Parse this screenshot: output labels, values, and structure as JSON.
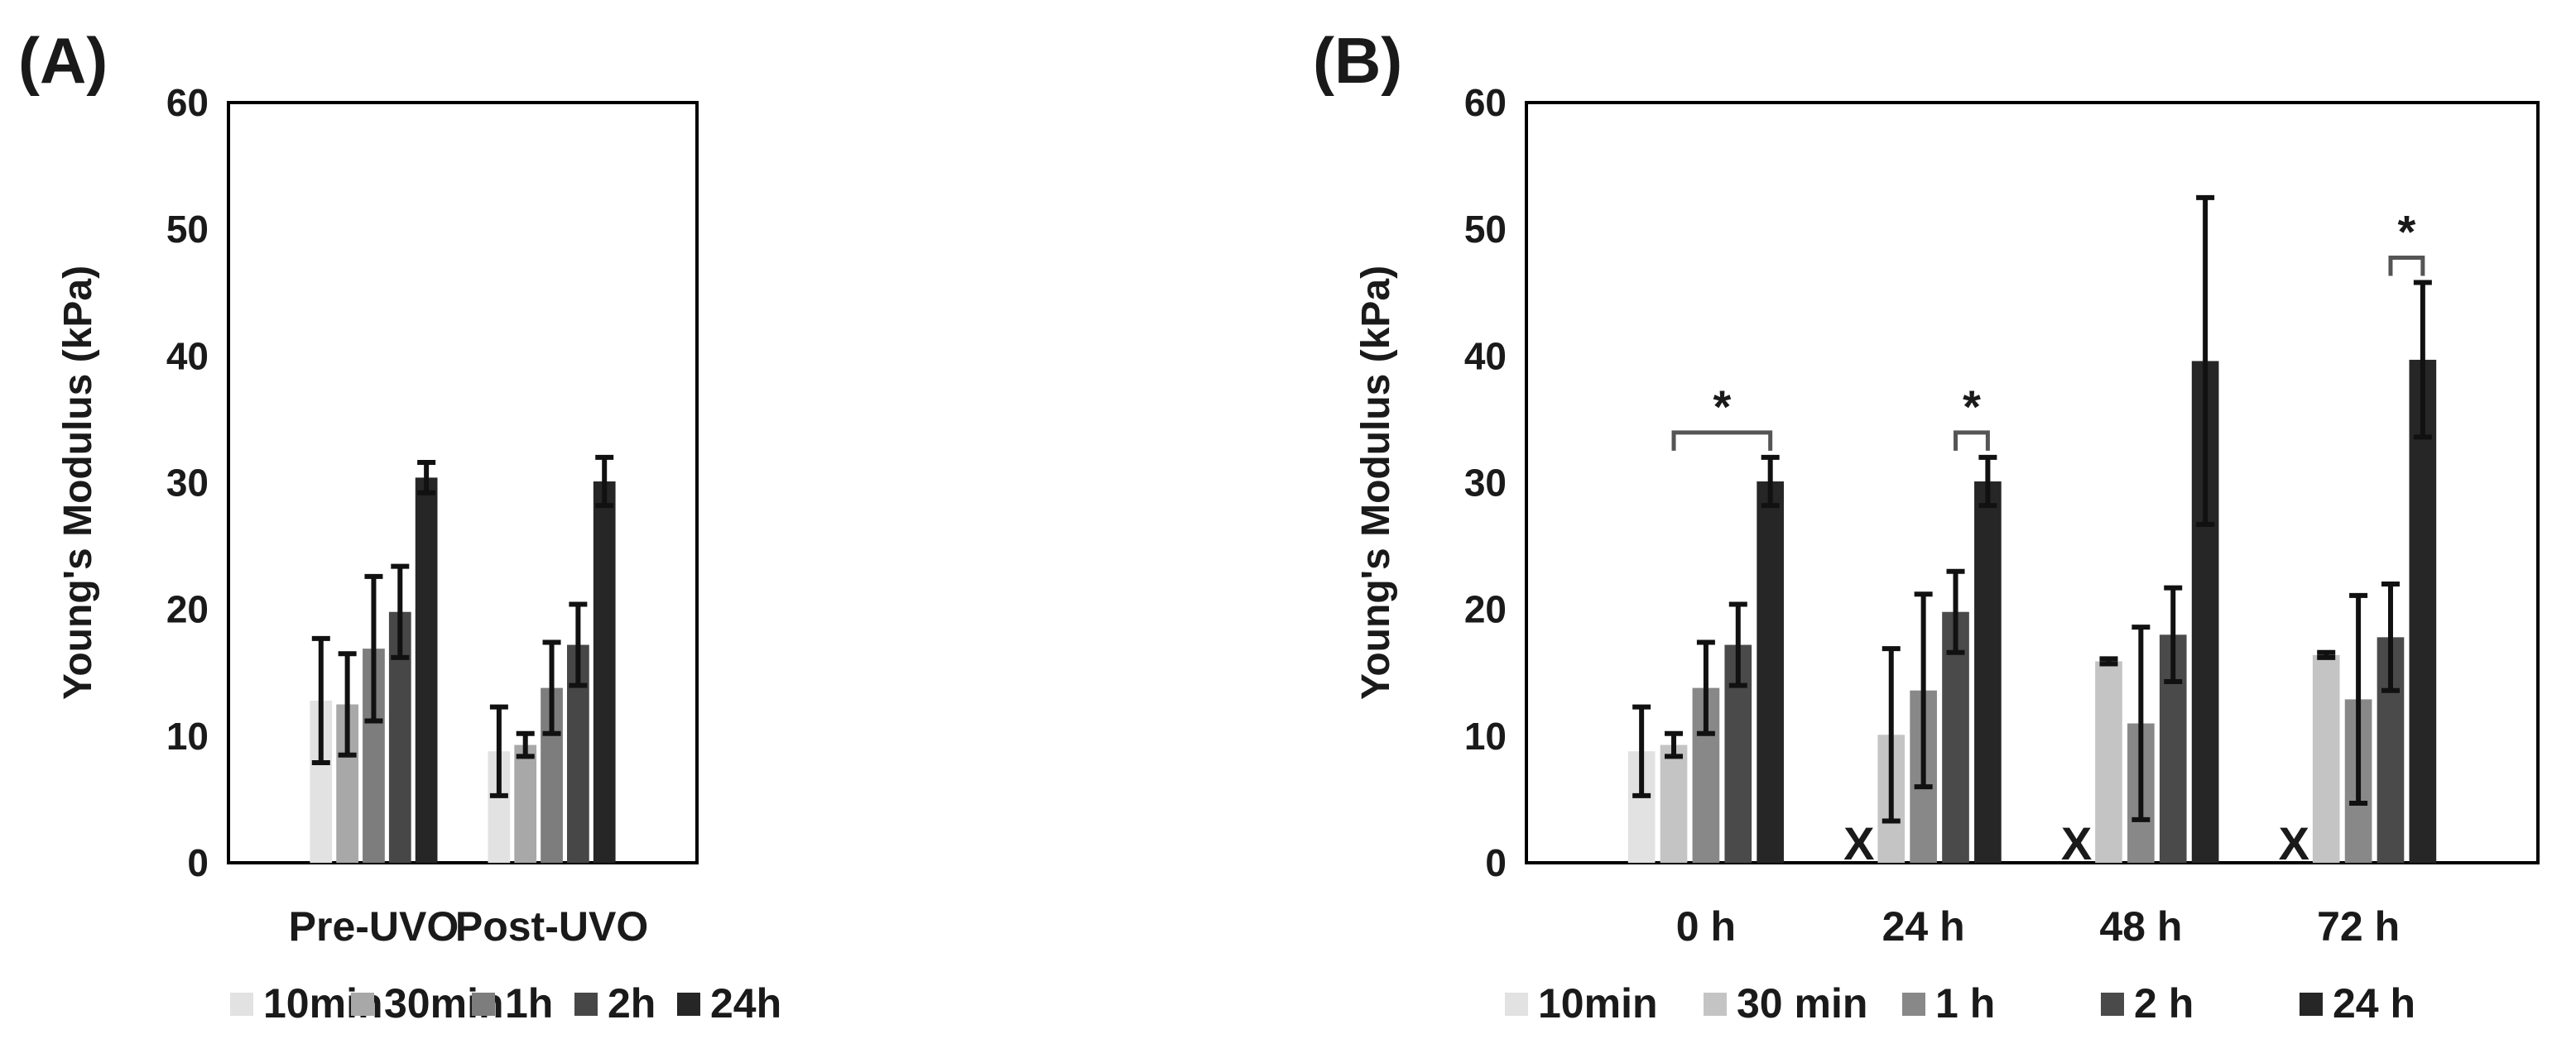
{
  "chart_data": [
    {
      "panel_label": "(A)",
      "type": "bar",
      "ylabel": "Young's Modulus (kPa)",
      "ylim": [
        0,
        60
      ],
      "yticks": [
        "0",
        "10",
        "20",
        "30",
        "40",
        "50",
        "60"
      ],
      "categories": [
        "Pre-UVO",
        "Post-UVO"
      ],
      "series": [
        {
          "name": "10min",
          "color": "#e2e2e2",
          "values": [
            12.8,
            8.8
          ],
          "err": [
            4.9,
            3.5
          ]
        },
        {
          "name": "30min",
          "color": "#a8a8a8",
          "values": [
            12.5,
            9.3
          ],
          "err": [
            4.0,
            0.9
          ]
        },
        {
          "name": "1h",
          "color": "#7d7d7d",
          "values": [
            16.9,
            13.8
          ],
          "err": [
            5.7,
            3.6
          ]
        },
        {
          "name": "2h",
          "color": "#474747",
          "values": [
            19.8,
            17.2
          ],
          "err": [
            3.6,
            3.2
          ]
        },
        {
          "name": "24h",
          "color": "#262626",
          "values": [
            30.4,
            30.1
          ],
          "err": [
            1.2,
            1.9
          ]
        }
      ],
      "annotations": []
    },
    {
      "panel_label": "(B)",
      "type": "bar",
      "ylabel": "Young's Modulus (kPa)",
      "ylim": [
        0,
        60
      ],
      "yticks": [
        "0",
        "10",
        "20",
        "30",
        "40",
        "50",
        "60"
      ],
      "categories": [
        "0 h",
        "24 h",
        "48 h",
        "72 h"
      ],
      "missing_marker": "X",
      "series": [
        {
          "name": "10min",
          "color": "#e2e2e2",
          "values": [
            8.8,
            null,
            null,
            null
          ],
          "err": [
            3.5,
            0,
            0,
            0
          ]
        },
        {
          "name": "30 min",
          "color": "#c4c4c4",
          "values": [
            9.3,
            10.1,
            15.9,
            16.4
          ],
          "err": [
            0.9,
            6.8,
            0.2,
            0.2
          ]
        },
        {
          "name": "1 h",
          "color": "#888888",
          "values": [
            13.8,
            13.6,
            11.0,
            12.9
          ],
          "err": [
            3.6,
            7.6,
            7.6,
            8.2
          ]
        },
        {
          "name": "2 h",
          "color": "#4a4a4a",
          "values": [
            17.2,
            19.8,
            18.0,
            17.8
          ],
          "err": [
            3.2,
            3.2,
            3.7,
            4.2
          ]
        },
        {
          "name": "24 h",
          "color": "#262626",
          "values": [
            30.1,
            30.1,
            39.6,
            39.7
          ],
          "err": [
            1.9,
            1.9,
            12.9,
            6.1
          ]
        }
      ],
      "annotations": [
        {
          "category": 0,
          "from_series": 1,
          "to_series": 4,
          "text": "*"
        },
        {
          "category": 1,
          "from_series": 3,
          "to_series": 4,
          "text": "*"
        },
        {
          "category": 3,
          "from_series": 3,
          "to_series": 4,
          "text": "*"
        }
      ]
    }
  ]
}
